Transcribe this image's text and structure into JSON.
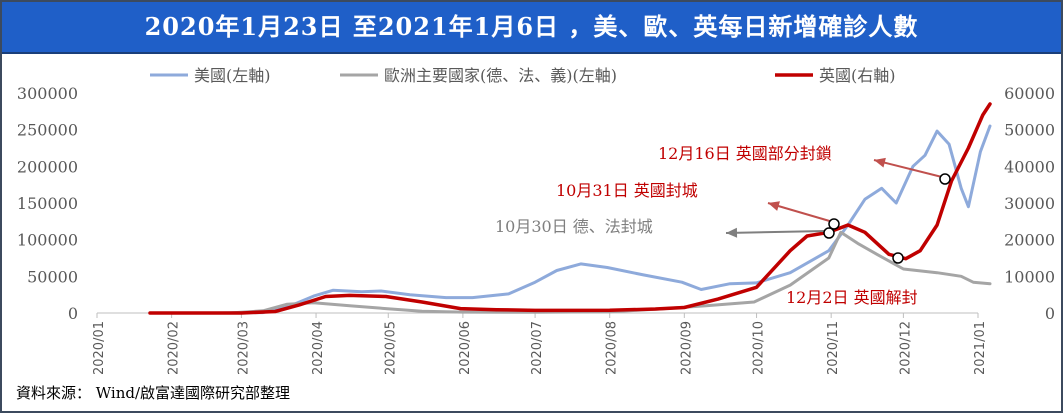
{
  "title": "2020年1月23日 至2021年1月6日 ，美、歐、英每日新增確診人數",
  "source": "資料來源： Wind/啟富達國際研究部整理",
  "chart_data": {
    "type": "line",
    "legend_position": "top",
    "grid": false,
    "left_axis": {
      "ylim": [
        0,
        300000
      ],
      "ticks": [
        "0",
        "50000",
        "100000",
        "150000",
        "200000",
        "250000",
        "300000"
      ]
    },
    "right_axis": {
      "ylim": [
        0,
        60000
      ],
      "ticks": [
        "0",
        "10000",
        "20000",
        "30000",
        "40000",
        "50000",
        "60000"
      ]
    },
    "x_ticks": [
      "2020/01",
      "2020/02",
      "2020/03",
      "2020/04",
      "2020/05",
      "2020/06",
      "2020/07",
      "2020/08",
      "2020/09",
      "2020/10",
      "2020/11",
      "2020/12",
      "2021/01"
    ],
    "series": [
      {
        "name": "美國(左軸)",
        "axis": "left",
        "color": "#8eaadb",
        "points": [
          [
            "2020-02-20",
            0
          ],
          [
            "2020-03-10",
            500
          ],
          [
            "2020-03-20",
            8000
          ],
          [
            "2020-03-31",
            23000
          ],
          [
            "2020-04-08",
            31000
          ],
          [
            "2020-04-20",
            29000
          ],
          [
            "2020-04-28",
            30000
          ],
          [
            "2020-05-10",
            25000
          ],
          [
            "2020-05-25",
            21000
          ],
          [
            "2020-06-05",
            21000
          ],
          [
            "2020-06-20",
            26000
          ],
          [
            "2020-07-01",
            42000
          ],
          [
            "2020-07-10",
            58000
          ],
          [
            "2020-07-20",
            67000
          ],
          [
            "2020-07-31",
            62000
          ],
          [
            "2020-08-15",
            52000
          ],
          [
            "2020-08-31",
            42000
          ],
          [
            "2020-09-08",
            32000
          ],
          [
            "2020-09-20",
            40000
          ],
          [
            "2020-10-01",
            41000
          ],
          [
            "2020-10-15",
            55000
          ],
          [
            "2020-10-31",
            85000
          ],
          [
            "2020-11-08",
            120000
          ],
          [
            "2020-11-15",
            155000
          ],
          [
            "2020-11-22",
            170000
          ],
          [
            "2020-11-28",
            150000
          ],
          [
            "2020-12-05",
            200000
          ],
          [
            "2020-12-10",
            215000
          ],
          [
            "2020-12-15",
            248000
          ],
          [
            "2020-12-20",
            230000
          ],
          [
            "2020-12-25",
            170000
          ],
          [
            "2020-12-28",
            145000
          ],
          [
            "2021-01-02",
            220000
          ],
          [
            "2021-01-06",
            255000
          ]
        ]
      },
      {
        "name": "歐洲主要國家(德、法、義)(左軸)",
        "axis": "left",
        "color": "#a5a5a5",
        "points": [
          [
            "2020-02-25",
            0
          ],
          [
            "2020-03-10",
            3000
          ],
          [
            "2020-03-20",
            12000
          ],
          [
            "2020-03-31",
            14000
          ],
          [
            "2020-04-15",
            10000
          ],
          [
            "2020-04-30",
            6000
          ],
          [
            "2020-05-15",
            2500
          ],
          [
            "2020-06-01",
            1200
          ],
          [
            "2020-07-01",
            1000
          ],
          [
            "2020-08-01",
            1800
          ],
          [
            "2020-08-20",
            5000
          ],
          [
            "2020-09-10",
            10000
          ],
          [
            "2020-09-30",
            15000
          ],
          [
            "2020-10-15",
            38000
          ],
          [
            "2020-10-31",
            75000
          ],
          [
            "2020-11-05",
            110000
          ],
          [
            "2020-11-12",
            95000
          ],
          [
            "2020-11-20",
            80000
          ],
          [
            "2020-12-01",
            60000
          ],
          [
            "2020-12-15",
            55000
          ],
          [
            "2020-12-25",
            50000
          ],
          [
            "2020-12-30",
            42000
          ],
          [
            "2021-01-06",
            40000
          ]
        ]
      },
      {
        "name": "英國(右軸)",
        "axis": "right",
        "color": "#c00000",
        "points": [
          [
            "2020-01-23",
            0
          ],
          [
            "2020-03-01",
            0
          ],
          [
            "2020-03-15",
            400
          ],
          [
            "2020-03-25",
            2200
          ],
          [
            "2020-04-05",
            4500
          ],
          [
            "2020-04-15",
            4800
          ],
          [
            "2020-04-30",
            4500
          ],
          [
            "2020-05-15",
            3000
          ],
          [
            "2020-05-31",
            1200
          ],
          [
            "2020-06-15",
            900
          ],
          [
            "2020-07-01",
            700
          ],
          [
            "2020-08-01",
            750
          ],
          [
            "2020-08-20",
            1100
          ],
          [
            "2020-09-01",
            1500
          ],
          [
            "2020-09-15",
            3800
          ],
          [
            "2020-10-01",
            7000
          ],
          [
            "2020-10-15",
            17000
          ],
          [
            "2020-10-22",
            21000
          ],
          [
            "2020-10-31",
            22000
          ],
          [
            "2020-11-08",
            24000
          ],
          [
            "2020-11-15",
            22000
          ],
          [
            "2020-11-25",
            16000
          ],
          [
            "2020-12-02",
            14800
          ],
          [
            "2020-12-08",
            17000
          ],
          [
            "2020-12-15",
            24000
          ],
          [
            "2020-12-21",
            36000
          ],
          [
            "2020-12-28",
            45000
          ],
          [
            "2021-01-03",
            54000
          ],
          [
            "2021-01-06",
            57000
          ]
        ]
      }
    ],
    "annotations": [
      {
        "text": "12月16日 英國部分封鎖",
        "color": "#c00000",
        "date": "2020-12-16"
      },
      {
        "text": "10月31日 英國封城",
        "color": "#c00000",
        "date": "2020-10-31"
      },
      {
        "text": "10月30日 德、法封城",
        "color": "#7f7f7f",
        "date": "2020-10-30"
      },
      {
        "text": "12月2日 英國解封",
        "color": "#c00000",
        "date": "2020-12-02"
      }
    ]
  }
}
